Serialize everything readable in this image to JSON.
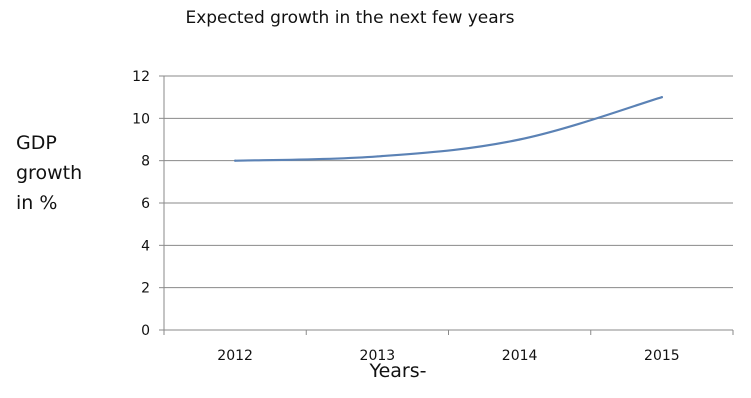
{
  "chart_data": {
    "type": "line",
    "title": "Expected growth in the next few years",
    "ylabel_lines": [
      "GDP",
      "growth",
      "in %"
    ],
    "xlabel": "Years-",
    "categories": [
      "2012",
      "2013",
      "2014",
      "2015"
    ],
    "series": [
      {
        "values": [
          8.0,
          8.2,
          9.0,
          11.0
        ],
        "color": "#5b82b5"
      }
    ],
    "ylim": [
      0,
      12
    ],
    "yticks": [
      0,
      2,
      4,
      6,
      8,
      10,
      12
    ],
    "grid": true,
    "legend": "none"
  }
}
